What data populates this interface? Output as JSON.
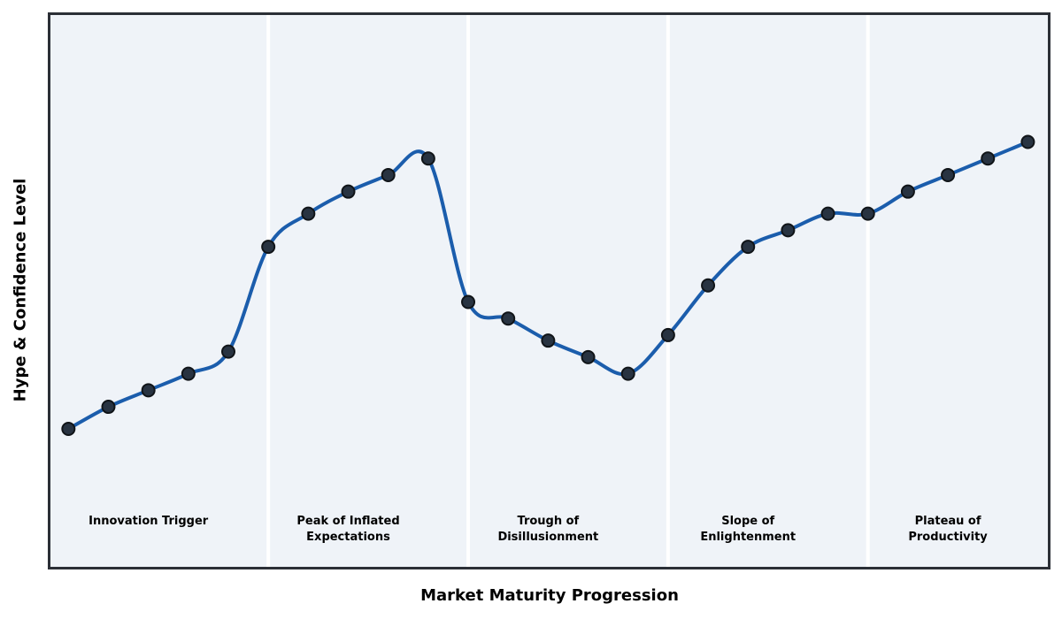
{
  "chart_data": {
    "type": "line",
    "title": "",
    "xlabel": "Market Maturity Progression",
    "ylabel": "Hype & Confidence Level",
    "x": [
      0,
      1,
      2,
      3,
      4,
      5,
      6,
      7,
      8,
      9,
      10,
      11,
      12,
      13,
      14,
      15,
      16,
      17,
      18,
      19,
      20,
      21,
      22,
      23,
      24
    ],
    "series": [
      {
        "name": "Hype & Confidence Level",
        "values": [
          25,
          29,
          32,
          35,
          39,
          58,
          64,
          68,
          71,
          74,
          48,
          45,
          41,
          38,
          35,
          42,
          51,
          58,
          61,
          64,
          64,
          68,
          71,
          74,
          77
        ]
      }
    ],
    "xlim": [
      -0.45,
      24.5
    ],
    "ylim": [
      0,
      100
    ],
    "grid": false,
    "legend": "none",
    "ticks": "none",
    "smoothing": "cubic-spline",
    "phase_boundaries_x": [
      5,
      10,
      15,
      20
    ],
    "phase_labels": [
      {
        "label": "Innovation Trigger",
        "center_x": 2
      },
      {
        "label": "Peak of Inflated\nExpectations",
        "center_x": 7
      },
      {
        "label": "Trough of\nDisillusionment",
        "center_x": 12
      },
      {
        "label": "Slope of\nEnlightenment",
        "center_x": 17
      },
      {
        "label": "Plateau of\nProductivity",
        "center_x": 22
      }
    ],
    "colors": {
      "plot_background": "#eff3f8",
      "phase_divider": "#ffffff",
      "line": "#1b5dac",
      "marker_fill": "#283341",
      "marker_edge": "#101418",
      "border": "#2b2f36",
      "text": "#000000"
    },
    "style": {
      "line_width": 4,
      "marker_radius": 7,
      "marker_edge_width": 2,
      "divider_width": 4,
      "border_width": 3
    }
  }
}
